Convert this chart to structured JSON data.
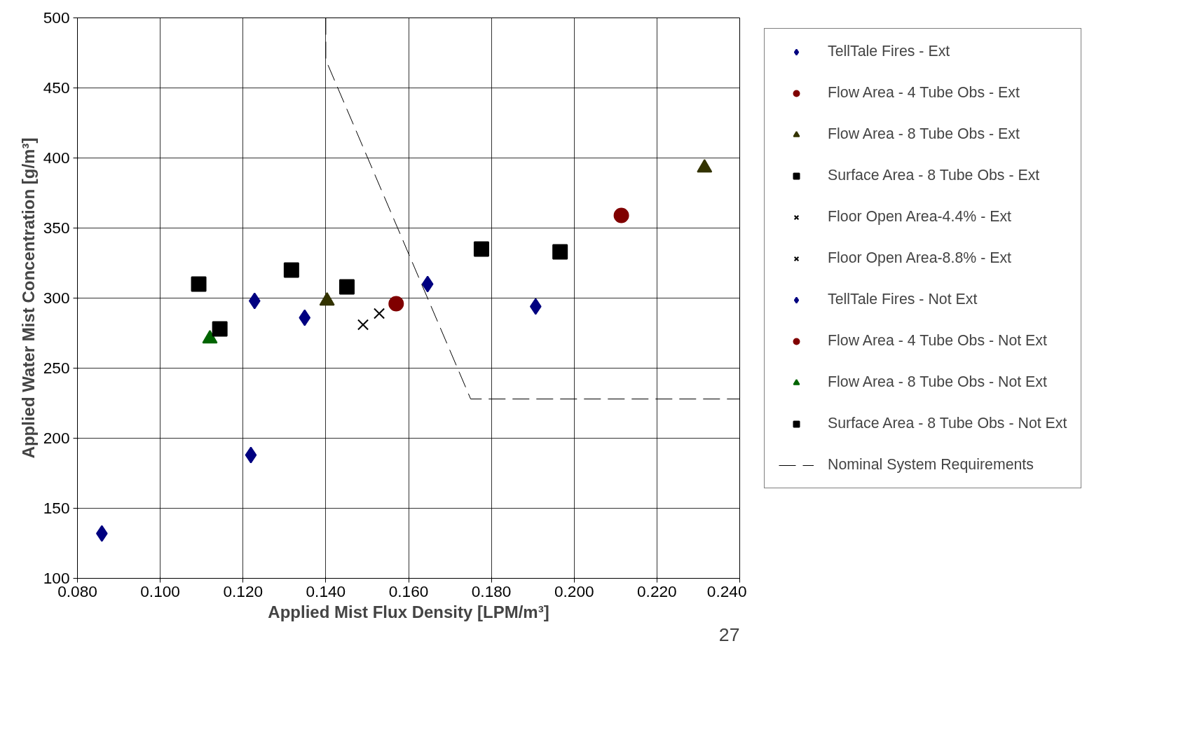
{
  "chart_data": {
    "type": "scatter",
    "xlabel": "Applied Mist Flux Density [LPM/m³]",
    "ylabel": "Applied Water Mist Concentration [g/m³]",
    "xlim": [
      0.08,
      0.24
    ],
    "ylim": [
      100,
      500
    ],
    "xticks": [
      {
        "value": 0.08,
        "label": "0.080"
      },
      {
        "value": 0.1,
        "label": "0.100"
      },
      {
        "value": 0.12,
        "label": "0.120"
      },
      {
        "value": 0.14,
        "label": "0.140"
      },
      {
        "value": 0.16,
        "label": "0.160"
      },
      {
        "value": 0.18,
        "label": "0.180"
      },
      {
        "value": 0.2,
        "label": "0.200"
      },
      {
        "value": 0.22,
        "label": "0.220"
      },
      {
        "value": 0.24,
        "label": "0.240"
      }
    ],
    "yticks": [
      100,
      150,
      200,
      250,
      300,
      350,
      400,
      450,
      500
    ],
    "grid": true,
    "legend": "right",
    "annotations": [
      "27"
    ],
    "series": [
      {
        "name": "TellTale Fires - Ext",
        "color": "#000080",
        "marker": "diamond",
        "x": [
          0.1646,
          0.1907
        ],
        "values": [
          310,
          294
        ]
      },
      {
        "name": "Flow Area - 4 Tube Obs - Ext",
        "color": "#800000",
        "marker": "circle",
        "x": [
          0.2114
        ],
        "values": [
          359
        ]
      },
      {
        "name": "Flow Area - 8 Tube Obs - Ext",
        "color": "#333300",
        "marker": "triangle",
        "x": [
          0.2315,
          0.1403
        ],
        "values": [
          393,
          298
        ]
      },
      {
        "name": "Surface Area - 8 Tube Obs - Ext",
        "color": "#000000",
        "marker": "square",
        "x": [
          0.1776,
          0.1966
        ],
        "values": [
          335,
          333
        ]
      },
      {
        "name": "Floor Open Area-4.4% - Ext",
        "color": "#000000",
        "marker": "cross",
        "x": [
          0.1529
        ],
        "values": [
          289
        ]
      },
      {
        "name": "Floor Open Area-8.8% - Ext",
        "color": "#000000",
        "marker": "cross",
        "x": [
          0.149
        ],
        "values": [
          281
        ]
      },
      {
        "name": "TellTale Fires - Not Ext",
        "color": "#000080",
        "marker": "diamond",
        "x": [
          0.0859,
          0.1219,
          0.1228,
          0.1349
        ],
        "values": [
          132,
          188,
          298,
          286
        ]
      },
      {
        "name": "Flow Area - 4 Tube Obs - Not Ext",
        "color": "#800000",
        "marker": "circle",
        "x": [
          0.157
        ],
        "values": [
          296
        ]
      },
      {
        "name": "Flow Area - 8 Tube Obs - Not Ext",
        "color": "#006400",
        "marker": "triangle",
        "x": [
          0.112
        ],
        "values": [
          271
        ]
      },
      {
        "name": "Surface Area - 8 Tube Obs - Not Ext",
        "color": "#000000",
        "marker": "square",
        "x": [
          0.1093,
          0.1144,
          0.1317,
          0.1451
        ],
        "values": [
          310,
          278,
          320,
          308
        ]
      },
      {
        "name": "Nominal System Requirements",
        "type": "line",
        "color": "#000000",
        "line_style": "dashed",
        "marker": "none",
        "x": [
          0.14,
          0.14,
          0.175,
          0.24
        ],
        "values": [
          500,
          470,
          228,
          228
        ]
      }
    ]
  }
}
